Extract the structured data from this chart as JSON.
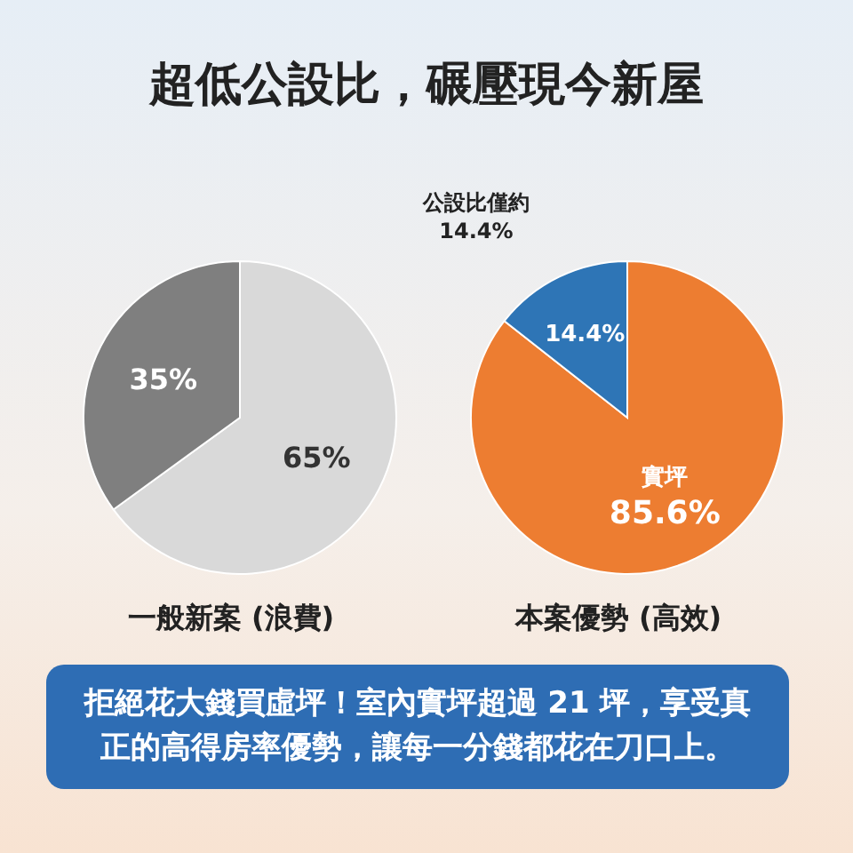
{
  "chart_data": [
    {
      "type": "pie",
      "title": "超低公設比，碾壓現今新屋",
      "xlabel": "一般新案 (浪費)",
      "categories": [
        null,
        null
      ],
      "values": [
        65,
        35
      ],
      "colors": [
        "#d9d9d9",
        "#7f7f7f"
      ],
      "value_labels": [
        "65%",
        "35%"
      ],
      "annotations": [
        "拒絕花大錢買虛坪！室內實坪超過 21 坪，享受真正的高得房率優勢，讓每一分錢都花在刀口上。"
      ]
    },
    {
      "type": "pie",
      "xlabel": "本案優勢 (高效)",
      "categories": [
        "實坪",
        null
      ],
      "values": [
        85.6,
        14.4
      ],
      "colors": [
        "#ed7d31",
        "#2e75b6"
      ],
      "value_labels": [
        "85.6%",
        "14.4%"
      ],
      "annotations": [
        "公設比僅約\n14.4%"
      ]
    }
  ]
}
